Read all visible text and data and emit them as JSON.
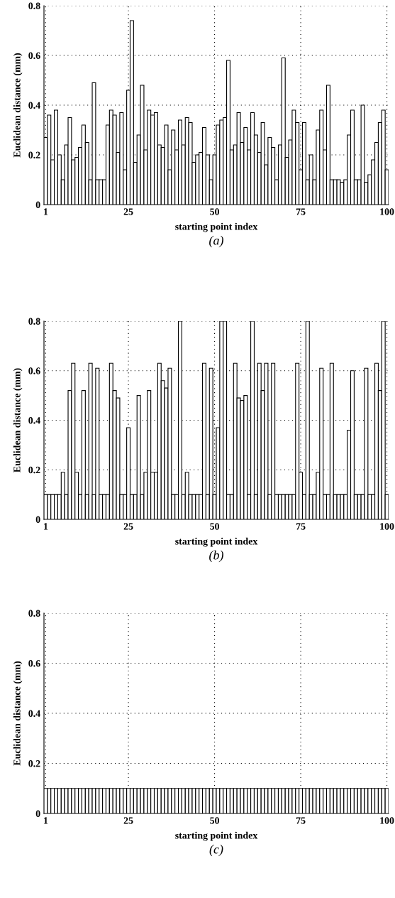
{
  "chart_data": [
    {
      "type": "bar",
      "xlabel": "starting point index",
      "ylabel": "Euclidean distance (mm)",
      "annotations": [
        "(a)"
      ],
      "color": "#ffffff",
      "x": [
        1,
        2,
        3,
        4,
        5,
        6,
        7,
        8,
        9,
        10,
        11,
        12,
        13,
        14,
        15,
        16,
        17,
        18,
        19,
        20,
        21,
        22,
        23,
        24,
        25,
        26,
        27,
        28,
        29,
        30,
        31,
        32,
        33,
        34,
        35,
        36,
        37,
        38,
        39,
        40,
        41,
        42,
        43,
        44,
        45,
        46,
        47,
        48,
        49,
        50,
        51,
        52,
        53,
        54,
        55,
        56,
        57,
        58,
        59,
        60,
        61,
        62,
        63,
        64,
        65,
        66,
        67,
        68,
        69,
        70,
        71,
        72,
        73,
        74,
        75,
        76,
        77,
        78,
        79,
        80,
        81,
        82,
        83,
        84,
        85,
        86,
        87,
        88,
        89,
        90,
        91,
        92,
        93,
        94,
        95,
        96,
        97,
        98,
        99,
        100
      ],
      "values": [
        0.27,
        0.36,
        0.18,
        0.38,
        0.2,
        0.1,
        0.24,
        0.35,
        0.18,
        0.19,
        0.23,
        0.32,
        0.25,
        0.1,
        0.49,
        0.1,
        0.1,
        0.1,
        0.32,
        0.38,
        0.36,
        0.21,
        0.37,
        0.14,
        0.46,
        0.74,
        0.17,
        0.28,
        0.48,
        0.22,
        0.38,
        0.36,
        0.37,
        0.24,
        0.23,
        0.32,
        0.14,
        0.3,
        0.22,
        0.34,
        0.24,
        0.35,
        0.33,
        0.17,
        0.2,
        0.21,
        0.31,
        0.2,
        0.1,
        0.2,
        0.32,
        0.34,
        0.35,
        0.58,
        0.22,
        0.24,
        0.37,
        0.25,
        0.31,
        0.22,
        0.37,
        0.28,
        0.21,
        0.33,
        0.16,
        0.27,
        0.23,
        0.1,
        0.24,
        0.59,
        0.19,
        0.26,
        0.38,
        0.33,
        0.14,
        0.33,
        0.1,
        0.2,
        0.1,
        0.3,
        0.38,
        0.22,
        0.48,
        0.1,
        0.1,
        0.1,
        0.09,
        0.1,
        0.28,
        0.38,
        0.1,
        0.1,
        0.4,
        0.09,
        0.12,
        0.18,
        0.25,
        0.33,
        0.38,
        0.14
      ],
      "xlim": [
        0.5,
        100.5
      ],
      "xticks": [
        1,
        25,
        50,
        75,
        100
      ],
      "ylim": [
        0,
        0.8
      ],
      "yticks": [
        0,
        0.2,
        0.4,
        0.6,
        0.8
      ],
      "grid": true
    },
    {
      "type": "bar",
      "xlabel": "starting point index",
      "ylabel": "Euclidean distance (mm)",
      "annotations": [
        "(b)"
      ],
      "color": "#ffffff",
      "x": [
        1,
        2,
        3,
        4,
        5,
        6,
        7,
        8,
        9,
        10,
        11,
        12,
        13,
        14,
        15,
        16,
        17,
        18,
        19,
        20,
        21,
        22,
        23,
        24,
        25,
        26,
        27,
        28,
        29,
        30,
        31,
        32,
        33,
        34,
        35,
        36,
        37,
        38,
        39,
        40,
        41,
        42,
        43,
        44,
        45,
        46,
        47,
        48,
        49,
        50,
        51,
        52,
        53,
        54,
        55,
        56,
        57,
        58,
        59,
        60,
        61,
        62,
        63,
        64,
        65,
        66,
        67,
        68,
        69,
        70,
        71,
        72,
        73,
        74,
        75,
        76,
        77,
        78,
        79,
        80,
        81,
        82,
        83,
        84,
        85,
        86,
        87,
        88,
        89,
        90,
        91,
        92,
        93,
        94,
        95,
        96,
        97,
        98,
        99,
        100
      ],
      "values": [
        0.1,
        0.1,
        0.1,
        0.1,
        0.1,
        0.19,
        0.1,
        0.52,
        0.63,
        0.19,
        0.1,
        0.52,
        0.1,
        0.63,
        0.1,
        0.61,
        0.1,
        0.1,
        0.1,
        0.63,
        0.52,
        0.49,
        0.1,
        0.1,
        0.37,
        0.1,
        0.1,
        0.5,
        0.1,
        0.19,
        0.52,
        0.19,
        0.19,
        0.63,
        0.56,
        0.53,
        0.61,
        0.1,
        0.1,
        0.8,
        0.1,
        0.19,
        0.1,
        0.1,
        0.1,
        0.1,
        0.63,
        0.1,
        0.61,
        0.1,
        0.37,
        0.8,
        0.8,
        0.1,
        0.1,
        0.63,
        0.49,
        0.48,
        0.5,
        0.1,
        0.8,
        0.1,
        0.63,
        0.52,
        0.63,
        0.1,
        0.63,
        0.1,
        0.1,
        0.1,
        0.1,
        0.1,
        0.1,
        0.63,
        0.19,
        0.1,
        0.8,
        0.1,
        0.1,
        0.19,
        0.61,
        0.1,
        0.1,
        0.63,
        0.1,
        0.1,
        0.1,
        0.1,
        0.36,
        0.6,
        0.1,
        0.1,
        0.1,
        0.61,
        0.1,
        0.1,
        0.63,
        0.52,
        0.8,
        0.1
      ],
      "xlim": [
        0.5,
        100.5
      ],
      "xticks": [
        1,
        25,
        50,
        75,
        100
      ],
      "ylim": [
        0,
        0.8
      ],
      "yticks": [
        0,
        0.2,
        0.4,
        0.6,
        0.8
      ],
      "grid": true
    },
    {
      "type": "bar",
      "xlabel": "starting point index",
      "ylabel": "Euclidean distance (mm)",
      "annotations": [
        "(c)"
      ],
      "color": "#ffffff",
      "x": [
        1,
        2,
        3,
        4,
        5,
        6,
        7,
        8,
        9,
        10,
        11,
        12,
        13,
        14,
        15,
        16,
        17,
        18,
        19,
        20,
        21,
        22,
        23,
        24,
        25,
        26,
        27,
        28,
        29,
        30,
        31,
        32,
        33,
        34,
        35,
        36,
        37,
        38,
        39,
        40,
        41,
        42,
        43,
        44,
        45,
        46,
        47,
        48,
        49,
        50,
        51,
        52,
        53,
        54,
        55,
        56,
        57,
        58,
        59,
        60,
        61,
        62,
        63,
        64,
        65,
        66,
        67,
        68,
        69,
        70,
        71,
        72,
        73,
        74,
        75,
        76,
        77,
        78,
        79,
        80,
        81,
        82,
        83,
        84,
        85,
        86,
        87,
        88,
        89,
        90,
        91,
        92,
        93,
        94,
        95,
        96,
        97,
        98,
        99,
        100
      ],
      "values": [
        0.1,
        0.1,
        0.1,
        0.1,
        0.1,
        0.1,
        0.1,
        0.1,
        0.1,
        0.1,
        0.1,
        0.1,
        0.1,
        0.1,
        0.1,
        0.1,
        0.1,
        0.1,
        0.1,
        0.1,
        0.1,
        0.1,
        0.1,
        0.1,
        0.1,
        0.1,
        0.1,
        0.1,
        0.1,
        0.1,
        0.1,
        0.1,
        0.1,
        0.1,
        0.1,
        0.1,
        0.1,
        0.1,
        0.1,
        0.1,
        0.1,
        0.1,
        0.1,
        0.1,
        0.1,
        0.1,
        0.1,
        0.1,
        0.1,
        0.1,
        0.1,
        0.1,
        0.1,
        0.1,
        0.1,
        0.1,
        0.1,
        0.1,
        0.1,
        0.1,
        0.1,
        0.1,
        0.1,
        0.1,
        0.1,
        0.1,
        0.1,
        0.1,
        0.1,
        0.1,
        0.1,
        0.1,
        0.1,
        0.1,
        0.1,
        0.1,
        0.1,
        0.1,
        0.1,
        0.1,
        0.1,
        0.1,
        0.1,
        0.1,
        0.1,
        0.1,
        0.1,
        0.1,
        0.1,
        0.1,
        0.1,
        0.1,
        0.1,
        0.1,
        0.1,
        0.1,
        0.1,
        0.1,
        0.1,
        0.1
      ],
      "xlim": [
        0.5,
        100.5
      ],
      "xticks": [
        1,
        25,
        50,
        75,
        100
      ],
      "ylim": [
        0,
        0.8
      ],
      "yticks": [
        0,
        0.2,
        0.4,
        0.6,
        0.8
      ],
      "grid": true
    }
  ]
}
